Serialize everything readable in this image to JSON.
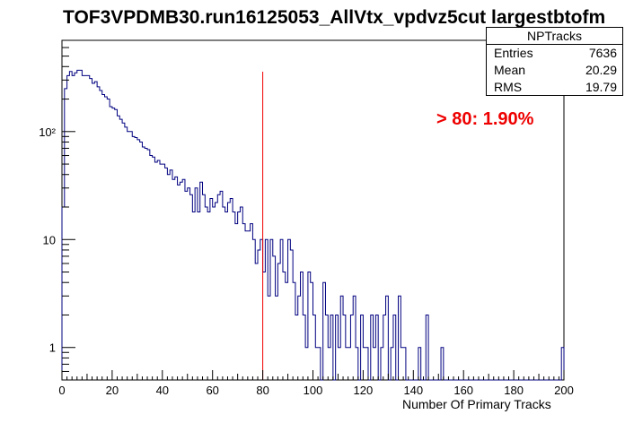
{
  "title": "TOF3VPDMB30.run16125053_AllVtx_vpdvz5cut largestbtofm",
  "stats": {
    "name": "NPTracks",
    "entries_label": "Entries",
    "entries_value": "7636",
    "mean_label": "Mean",
    "mean_value": "20.29",
    "rms_label": "RMS",
    "rms_value": "19.79"
  },
  "annotation": "> 80: 1.90%",
  "colors": {
    "histogram": "#000080",
    "cut_line": "#ee0000",
    "annotation": "#ee0000"
  },
  "chart_data": {
    "type": "bar",
    "xlabel": "Number Of Primary Tracks",
    "ylabel": "",
    "xlim": [
      0,
      200
    ],
    "ylim": [
      0.5,
      700
    ],
    "yscale": "log",
    "bin_width": 1,
    "x_ticks": [
      "0",
      "20",
      "40",
      "60",
      "80",
      "100",
      "120",
      "140",
      "160",
      "180",
      "200"
    ],
    "y_ticks": [
      {
        "value": 1,
        "label": "1"
      },
      {
        "value": 10,
        "label": "10"
      },
      {
        "value": 100,
        "label": "10²"
      }
    ],
    "cut_line_x": 80,
    "bin_values": [
      20,
      250,
      330,
      360,
      330,
      350,
      370,
      370,
      330,
      330,
      330,
      310,
      280,
      290,
      260,
      240,
      220,
      210,
      200,
      170,
      165,
      160,
      140,
      130,
      120,
      110,
      100,
      100,
      90,
      88,
      84,
      80,
      72,
      70,
      68,
      60,
      58,
      52,
      54,
      50,
      50,
      46,
      40,
      44,
      36,
      38,
      32,
      34,
      36,
      28,
      30,
      26,
      18,
      30,
      18,
      34,
      26,
      20,
      18,
      24,
      20,
      22,
      26,
      28,
      20,
      18,
      22,
      24,
      18,
      14,
      18,
      20,
      14,
      12,
      12,
      14,
      10,
      6,
      8,
      10,
      5,
      10,
      3,
      10,
      7,
      3,
      6,
      10,
      5,
      4,
      10,
      8,
      4,
      2,
      3,
      5,
      2,
      1,
      5,
      4,
      2,
      1,
      1,
      0,
      4,
      2,
      1,
      2,
      0,
      2,
      1,
      3,
      2,
      1,
      1,
      2,
      3,
      1,
      0,
      2,
      1,
      1,
      0,
      2,
      1,
      2,
      0,
      1,
      2,
      3,
      0,
      1,
      2,
      0,
      3,
      1,
      1,
      0,
      0,
      0,
      0,
      0,
      1,
      0,
      0,
      2,
      0,
      0,
      0,
      0,
      0,
      1,
      0,
      0,
      0,
      0,
      0,
      0,
      0,
      0,
      0,
      0,
      0,
      0,
      0,
      0,
      0,
      0,
      0,
      0,
      0,
      0,
      0,
      0,
      0,
      0,
      0,
      0,
      0,
      0,
      0,
      0,
      0,
      0,
      0,
      0,
      0,
      0,
      0,
      0,
      0,
      0,
      0,
      0,
      0,
      0,
      0,
      0,
      0,
      1
    ]
  }
}
